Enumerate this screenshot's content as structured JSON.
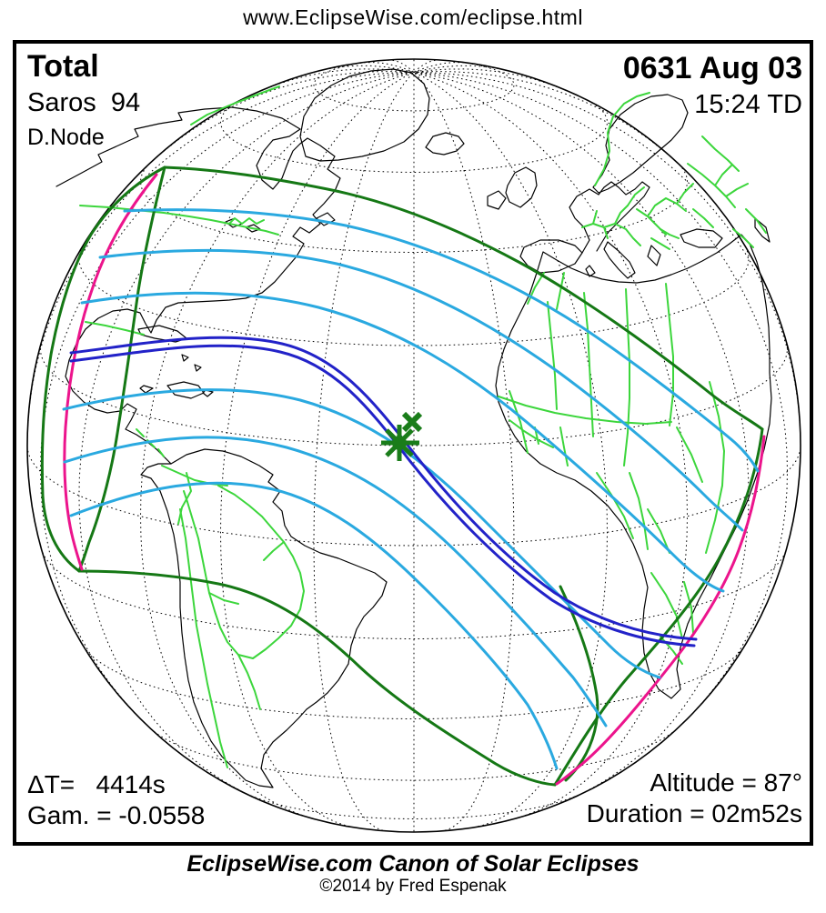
{
  "page": {
    "url_caption": "www.EclipseWise.com/eclipse.html"
  },
  "eclipse": {
    "type": "Total",
    "saros": "Saros  94",
    "node": "D.Node",
    "date": "0631 Aug 03",
    "time": "15:24 TD",
    "delta_t": "ΔT=   4414s",
    "gamma": "Gam. = -0.0558",
    "altitude": "Altitude = 87°",
    "duration": "Duration = 02m52s"
  },
  "footer": {
    "title": "EclipseWise.com Canon of Solar Eclipses",
    "copyright": "©2014 by Fred Espenak"
  },
  "markers": {
    "greatest_eclipse_icon": "asterisk-icon",
    "subsolar_point_icon": "x-icon"
  },
  "palette": {
    "coastline_black": "#000000",
    "border_green": "#3cd63c",
    "limit_green": "#157815",
    "contour_cyan": "#2aa9e0",
    "central_blue": "#2222c8",
    "maximum_magenta": "#ec148c",
    "marker_green": "#1a7d1a",
    "text_black": "#000000"
  }
}
